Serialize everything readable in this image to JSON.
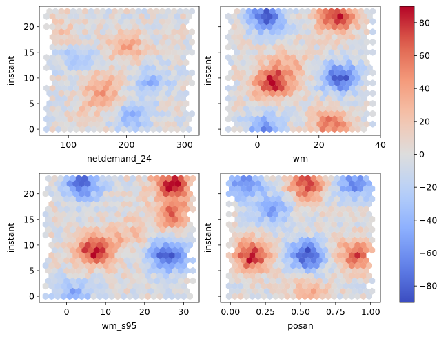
{
  "chart_data": [
    {
      "type": "hexbin",
      "xlabel": "netdemand_24",
      "ylabel": "instant",
      "xlim": [
        50,
        325
      ],
      "ylim": [
        -1.2,
        24
      ],
      "xticks": [
        "100",
        "200",
        "300"
      ],
      "yticks": [
        "0",
        "5",
        "10",
        "15",
        "20"
      ],
      "x_range": [
        65,
        310
      ],
      "hot_spots": [
        {
          "x": 160,
          "y": 8,
          "value": 40
        },
        {
          "x": 200,
          "y": 16,
          "value": 35
        },
        {
          "x": 240,
          "y": 9,
          "value": -40
        },
        {
          "x": 110,
          "y": 14,
          "value": -30
        },
        {
          "x": 90,
          "y": 19,
          "value": 20
        },
        {
          "x": 210,
          "y": 2,
          "value": -40
        },
        {
          "x": 140,
          "y": 4,
          "value": 15
        }
      ]
    },
    {
      "type": "hexbin",
      "xlabel": "wm",
      "ylabel": "instant",
      "xlim": [
        -12,
        40
      ],
      "ylim": [
        -1.2,
        24
      ],
      "xticks": [
        "0",
        "20",
        "40"
      ],
      "yticks": [
        "0",
        "5",
        "10",
        "15",
        "20"
      ],
      "x_range": [
        -9,
        37
      ],
      "hot_spots": [
        {
          "x": 5,
          "y": 9,
          "value": 85
        },
        {
          "x": 26,
          "y": 22,
          "value": 85
        },
        {
          "x": 3,
          "y": 22,
          "value": -80
        },
        {
          "x": 27,
          "y": 10,
          "value": -80
        },
        {
          "x": 24,
          "y": 1,
          "value": 60
        },
        {
          "x": 2,
          "y": 0,
          "value": -55
        },
        {
          "x": 10,
          "y": 13,
          "value": 30
        }
      ]
    },
    {
      "type": "hexbin",
      "xlabel": "wm_s95",
      "ylabel": "instant",
      "xlim": [
        -7,
        34
      ],
      "ylim": [
        -1.2,
        24
      ],
      "xticks": [
        "0",
        "10",
        "20",
        "30"
      ],
      "yticks": [
        "0",
        "5",
        "10",
        "15",
        "20"
      ],
      "x_range": [
        -5,
        32
      ],
      "hot_spots": [
        {
          "x": 7,
          "y": 9,
          "value": 85
        },
        {
          "x": 27,
          "y": 22,
          "value": 85
        },
        {
          "x": 4,
          "y": 22,
          "value": -75
        },
        {
          "x": 26,
          "y": 8,
          "value": -85
        },
        {
          "x": 27,
          "y": 16,
          "value": 60
        },
        {
          "x": 2,
          "y": 0,
          "value": -50
        },
        {
          "x": 15,
          "y": 12,
          "value": 25
        }
      ]
    },
    {
      "type": "hexbin",
      "xlabel": "posan",
      "ylabel": "instant",
      "xlim": [
        -0.07,
        1.07
      ],
      "ylim": [
        -1.2,
        24
      ],
      "xticks": [
        "0.00",
        "0.25",
        "0.50",
        "0.75",
        "1.00"
      ],
      "yticks": [
        "0",
        "5",
        "10",
        "15",
        "20"
      ],
      "x_range": [
        0.0,
        1.0
      ],
      "hot_spots": [
        {
          "x": 0.15,
          "y": 8,
          "value": 85
        },
        {
          "x": 0.55,
          "y": 22,
          "value": 80
        },
        {
          "x": 0.9,
          "y": 8,
          "value": 70
        },
        {
          "x": 0.55,
          "y": 8,
          "value": -85
        },
        {
          "x": 0.1,
          "y": 22,
          "value": -60
        },
        {
          "x": 0.3,
          "y": 17,
          "value": -50
        },
        {
          "x": 0.88,
          "y": 22,
          "value": -60
        },
        {
          "x": 0.55,
          "y": 0,
          "value": 40
        }
      ]
    }
  ],
  "colorbar": {
    "colormap": "coolwarm",
    "range": [
      -90,
      90
    ],
    "ticks": [
      "−80",
      "−60",
      "−40",
      "−20",
      "0",
      "20",
      "40",
      "60",
      "80"
    ],
    "tick_values": [
      -80,
      -60,
      -40,
      -20,
      0,
      20,
      40,
      60,
      80
    ]
  }
}
